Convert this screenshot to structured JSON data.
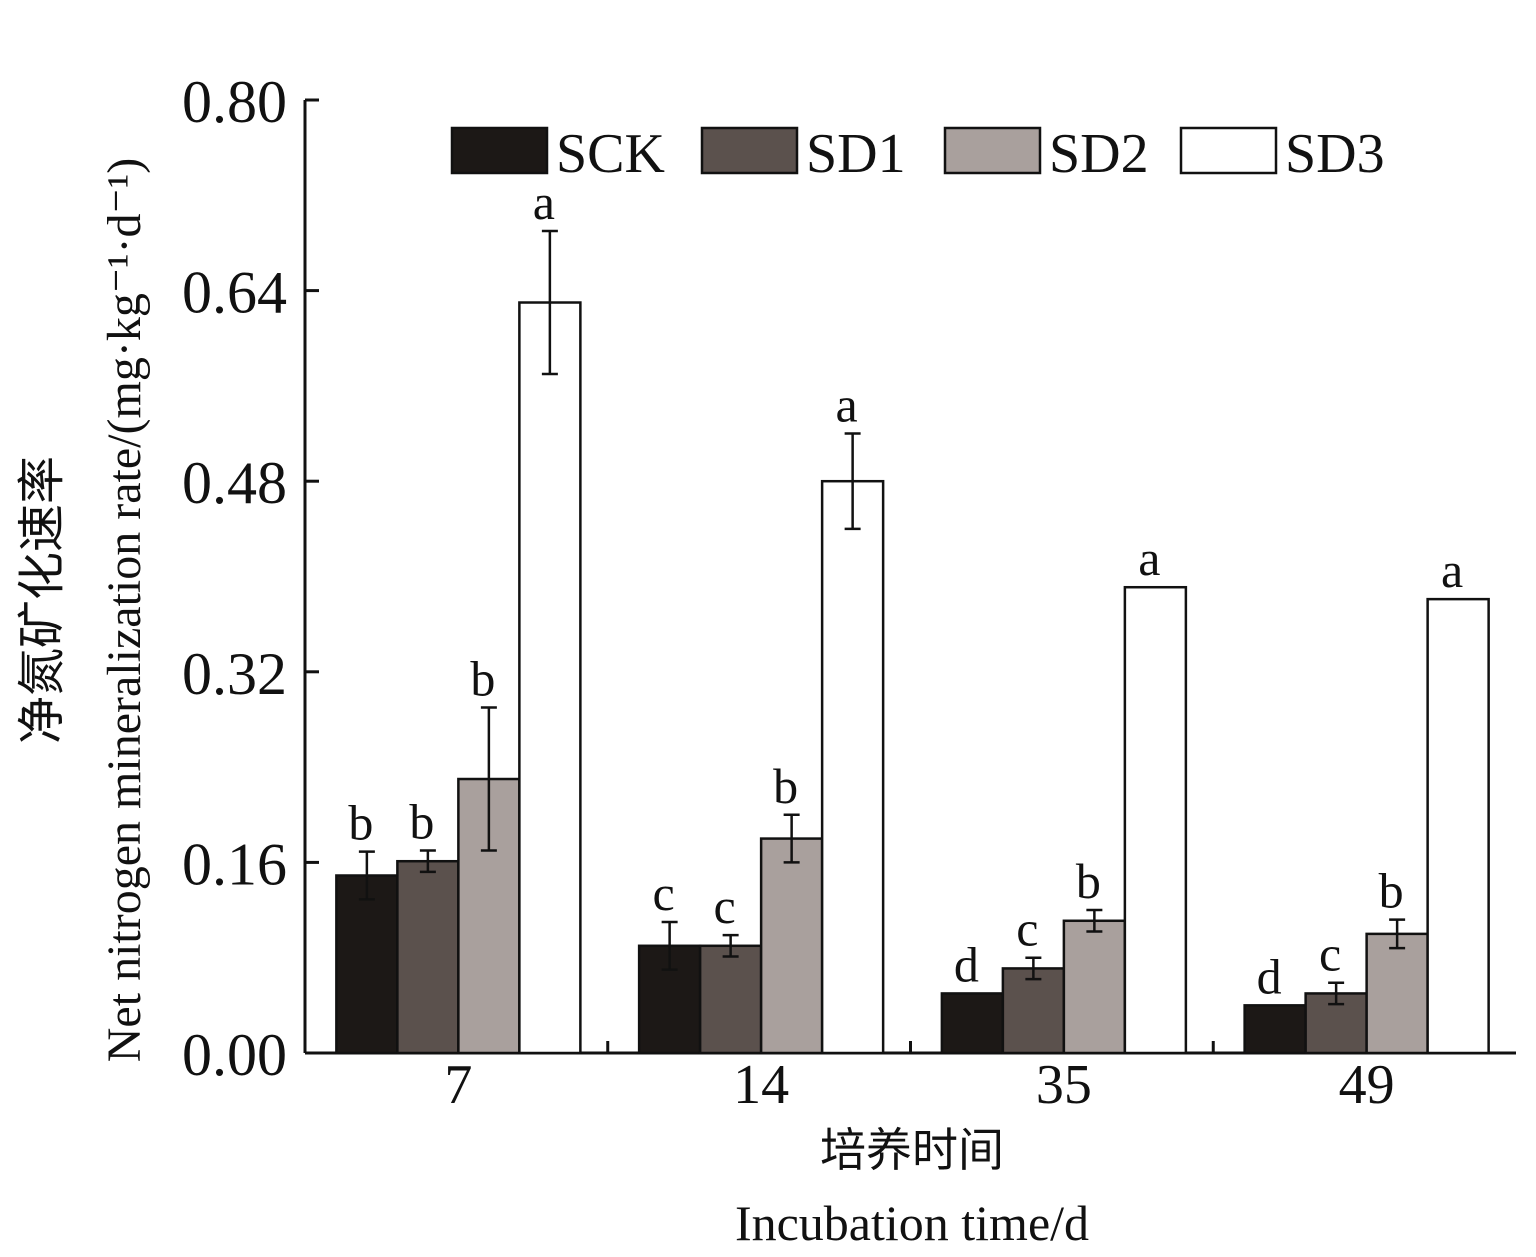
{
  "chart_data": {
    "type": "bar",
    "categories": [
      "7",
      "14",
      "35",
      "49"
    ],
    "series": [
      {
        "name": "SCK",
        "color": "#1c1816",
        "values": [
          0.149,
          0.09,
          0.05,
          0.04
        ],
        "errors": [
          0.02,
          0.02,
          0.0,
          0.0
        ],
        "letters": [
          "b",
          "c",
          "d",
          "d"
        ]
      },
      {
        "name": "SD1",
        "color": "#5b514d",
        "values": [
          0.161,
          0.09,
          0.071,
          0.05
        ],
        "errors": [
          0.009,
          0.009,
          0.009,
          0.009
        ],
        "letters": [
          "b",
          "c",
          "c",
          "c"
        ]
      },
      {
        "name": "SD2",
        "color": "#a9a09d",
        "values": [
          0.23,
          0.18,
          0.111,
          0.1
        ],
        "errors": [
          0.06,
          0.02,
          0.009,
          0.012
        ],
        "letters": [
          "b",
          "b",
          "b",
          "b"
        ]
      },
      {
        "name": "SD3",
        "color": "#ffffff",
        "values": [
          0.63,
          0.48,
          0.391,
          0.381
        ],
        "errors": [
          0.06,
          0.04,
          0.0,
          0.0
        ],
        "letters": [
          "a",
          "a",
          "a",
          "a"
        ]
      }
    ],
    "yticks": [
      "0.00",
      "0.16",
      "0.32",
      "0.48",
      "0.64",
      "0.80"
    ],
    "ylim": [
      0,
      0.8
    ],
    "ylabel_cn": "净氮矿化速率",
    "ylabel_en": "Net nitrogen mineralization rate/(mg·kg⁻¹·d⁻¹)",
    "xlabel_cn": "培养时间",
    "xlabel_en": "Incubation time/d",
    "legend_position": "top",
    "grid": false
  }
}
